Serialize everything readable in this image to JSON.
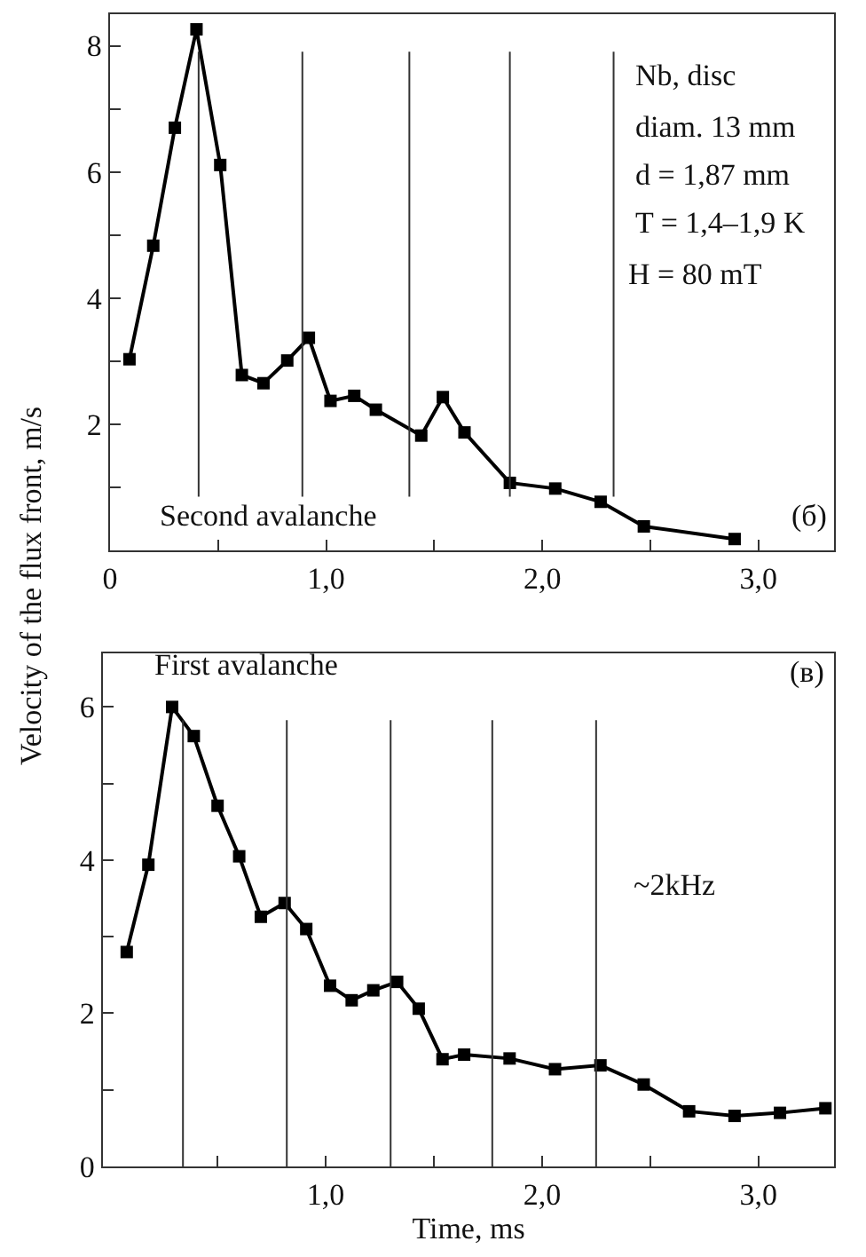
{
  "chart_data": [
    {
      "type": "line",
      "color": "#000000",
      "marker": "square",
      "line_style": "solid",
      "grid": false,
      "legend": false,
      "ylabel": "Velocity of the flux front, m/s",
      "x": [
        0.09,
        0.2,
        0.3,
        0.4,
        0.51,
        0.61,
        0.71,
        0.82,
        0.92,
        1.02,
        1.13,
        1.23,
        1.44,
        1.54,
        1.64,
        1.85,
        2.06,
        2.27,
        2.47,
        2.89
      ],
      "values": [
        3.03,
        4.83,
        6.7,
        8.26,
        6.11,
        2.78,
        2.65,
        3.01,
        3.37,
        2.37,
        2.45,
        2.23,
        1.82,
        2.43,
        1.87,
        1.07,
        0.98,
        0.77,
        0.38,
        0.18
      ],
      "xlim": [
        0,
        3.35
      ],
      "ylim": [
        0,
        8.5
      ],
      "xticks": [
        0,
        {
          "value": 0.5,
          "label": null
        },
        {
          "value": 1,
          "label": "1,0"
        },
        {
          "value": 1.5,
          "label": null
        },
        {
          "value": 2,
          "label": "2,0"
        },
        {
          "value": 2.5,
          "label": null
        },
        {
          "value": 3,
          "label": "3,0"
        }
      ],
      "yticks": [
        {
          "value": 1,
          "label": null
        },
        2,
        {
          "value": 3,
          "label": null
        },
        4,
        {
          "value": 5,
          "label": null
        },
        6,
        {
          "value": 7,
          "label": null
        },
        8
      ],
      "ref_lines": [
        {
          "axis": "x",
          "value": 0.41
        },
        {
          "axis": "x",
          "value": 0.89
        },
        {
          "axis": "x",
          "value": 1.385
        },
        {
          "axis": "x",
          "value": 1.85
        },
        {
          "axis": "x",
          "value": 2.33
        }
      ],
      "annotations": [
        "Nb, disc",
        "diam. 13 mm",
        "d = 1,87 mm",
        "T = 1,4–1,9 K",
        "H = 80 mT",
        "Second avalanche",
        "(б)"
      ]
    },
    {
      "type": "line",
      "color": "#000000",
      "marker": "square",
      "line_style": "solid",
      "grid": false,
      "legend": false,
      "xlabel": "Time, ms",
      "x": [
        0.08,
        0.18,
        0.29,
        0.39,
        0.5,
        0.6,
        0.7,
        0.81,
        0.91,
        1.02,
        1.12,
        1.22,
        1.33,
        1.43,
        1.54,
        1.64,
        1.85,
        2.06,
        2.27,
        2.47,
        2.68,
        2.89,
        3.1,
        3.31
      ],
      "values": [
        2.8,
        3.94,
        6.0,
        5.62,
        4.71,
        4.05,
        3.26,
        3.44,
        3.1,
        2.36,
        2.17,
        2.3,
        2.41,
        2.06,
        1.4,
        1.46,
        1.41,
        1.27,
        1.32,
        1.07,
        0.72,
        0.66,
        0.7,
        0.76
      ],
      "xlim": [
        -0.03,
        3.35
      ],
      "ylim": [
        0,
        6.7
      ],
      "xticks": [
        {
          "value": 0.5,
          "label": null
        },
        {
          "value": 1,
          "label": "1,0"
        },
        {
          "value": 1.5,
          "label": null
        },
        {
          "value": 2,
          "label": "2,0"
        },
        {
          "value": 2.5,
          "label": null
        },
        {
          "value": 3,
          "label": "3,0"
        }
      ],
      "yticks": [
        0,
        {
          "value": 1,
          "label": null
        },
        2,
        {
          "value": 3,
          "label": null
        },
        4,
        {
          "value": 5,
          "label": null
        },
        6
      ],
      "ref_lines": [
        {
          "axis": "x",
          "value": 0.34
        },
        {
          "axis": "x",
          "value": 0.82
        },
        {
          "axis": "x",
          "value": 1.3
        },
        {
          "axis": "x",
          "value": 1.77
        },
        {
          "axis": "x",
          "value": 2.25
        }
      ],
      "annotations": [
        "First avalanche",
        "(в)",
        "~2kHz"
      ]
    }
  ]
}
